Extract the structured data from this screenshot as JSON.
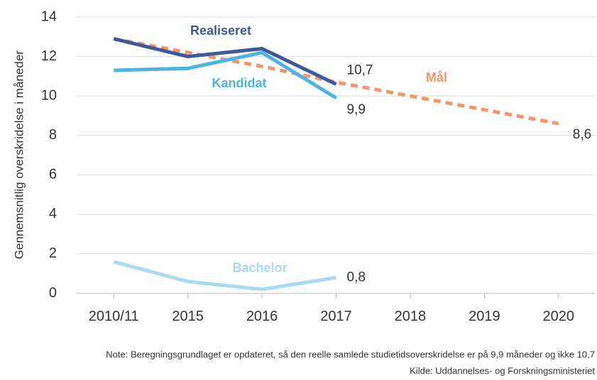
{
  "chart_data": {
    "type": "line",
    "y_label": "Gennemsnitlig overskridelse i måneder",
    "categories": [
      "2010/11",
      "2015",
      "2016",
      "2017",
      "2018",
      "2019",
      "2020"
    ],
    "series": [
      {
        "name": "Mål",
        "color": "#f5956a",
        "dashed": true,
        "values": [
          12.9,
          12.2,
          11.5,
          10.7,
          10.0,
          9.3,
          8.6
        ],
        "value_labels": [
          null,
          null,
          null,
          "10,7",
          null,
          null,
          "8,6"
        ]
      },
      {
        "name": "Realiseret",
        "color": "#3f5a9a",
        "values": [
          12.9,
          12.0,
          12.4,
          10.6,
          null,
          null,
          null
        ]
      },
      {
        "name": "Kandidat",
        "color": "#4db3e4",
        "values": [
          11.3,
          11.4,
          12.2,
          9.9,
          null,
          null,
          null
        ],
        "value_labels": [
          null,
          null,
          null,
          "9,9",
          null,
          null,
          null
        ]
      },
      {
        "name": "Bachelor",
        "color": "#a8daf1",
        "values": [
          1.6,
          0.6,
          0.2,
          0.8,
          null,
          null,
          null
        ],
        "value_labels": [
          null,
          null,
          null,
          "0,8",
          null,
          null,
          null
        ]
      }
    ],
    "ylim": [
      0,
      14
    ],
    "yticks": [
      0,
      2,
      4,
      6,
      8,
      10,
      12,
      14
    ],
    "grid": true,
    "notes": [
      "Note: Beregningsgrundlaget er opdateret, så den reelle samlede studietidsoverskridelse er på 9,9 måneder og ikke 10,7",
      "Kilde: Uddannelses- og Forskningsministeriet"
    ]
  }
}
